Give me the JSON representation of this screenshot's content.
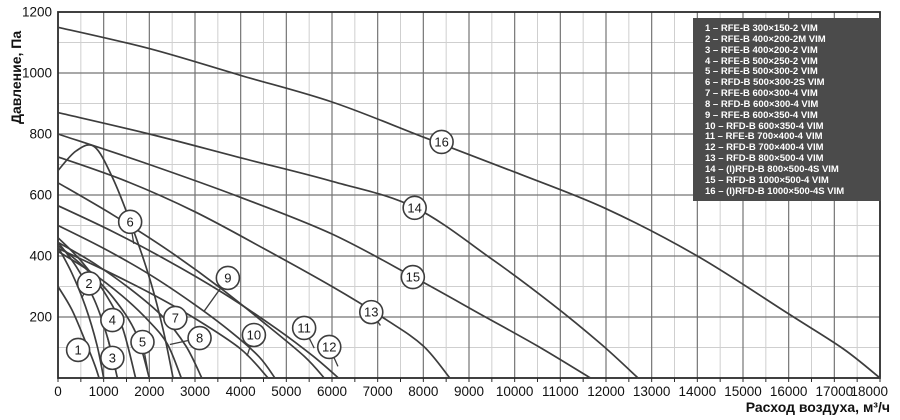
{
  "colors": {
    "curve": "#3d3d3d",
    "grid_major": "#757575",
    "grid_minor": "#cfcfcf",
    "axis_border": "#2b2b2b",
    "legend_bg": "#4b4b4b",
    "legend_text": "#ffffff",
    "tick_text": "#111111",
    "circle_fill": "#ffffff"
  },
  "legend": {
    "items": [
      "1 – RFE-B 300×150-2 VIM",
      "2 – RFE-B 400×200-2M VIM",
      "3 – RFE-B 400×200-2 VIM",
      "4 – RFE-B 500×250-2 VIM",
      "5 – RFE-B 500×300-2 VIM",
      "6 – RFD-B 500×300-2S VIM",
      "7 – RFE-B 600×300-4 VIM",
      "8 – RFD-B 600×300-4 VIM",
      "9 – RFE-B 600×350-4 VIM",
      "10 – RFD-B 600×350-4 VIM",
      "11 – RFE-B 700×400-4 VIM",
      "12 – RFD-B 700×400-4 VIM",
      "13 – RFD-B 800×500-4 VIM",
      "14 – (I)RFD-B 800×500-4S VIM",
      "15 – RFD-B 1000×500-4 VIM",
      "16 – (I)RFD-B 1000×500-4S VIM"
    ]
  },
  "chart_data": {
    "type": "line",
    "title": "",
    "xlabel": "Расход воздуха, м³/ч",
    "ylabel": "Давление, Па",
    "xlim": [
      0,
      18000
    ],
    "ylim": [
      0,
      1200
    ],
    "x_major": 1000,
    "x_minor": 500,
    "y_major": 200,
    "y_minor": 100,
    "x_ticks": [
      0,
      1000,
      2000,
      3000,
      4000,
      5000,
      6000,
      7000,
      8000,
      9000,
      10000,
      11000,
      12000,
      13000,
      14000,
      15000,
      16000,
      17000,
      18000
    ],
    "y_ticks": [
      200,
      400,
      600,
      800,
      1000,
      1200
    ],
    "grid": true,
    "legend_position": "top-right",
    "series": [
      {
        "id": "1",
        "model": "RFE-B 300×150-2 VIM",
        "label_at": [
          440,
          92
        ],
        "leader_to": [
          594,
          125
        ],
        "points": [
          [
            0,
            300
          ],
          [
            300,
            225
          ],
          [
            600,
            120
          ],
          [
            800,
            45
          ],
          [
            900,
            0
          ]
        ]
      },
      {
        "id": "2",
        "model": "RFE-B 400×200-2M VIM",
        "label_at": [
          680,
          310
        ],
        "leader_to": [
          520,
          262
        ],
        "points": [
          [
            0,
            430
          ],
          [
            300,
            345
          ],
          [
            600,
            235
          ],
          [
            850,
            110
          ],
          [
            1000,
            0
          ]
        ]
      },
      {
        "id": "3",
        "model": "RFE-B 400×200-2 VIM",
        "label_at": [
          1190,
          66
        ],
        "leader_to": [
          1080,
          135
        ],
        "points": [
          [
            0,
            445
          ],
          [
            400,
            365
          ],
          [
            800,
            255
          ],
          [
            1100,
            125
          ],
          [
            1300,
            0
          ]
        ]
      },
      {
        "id": "4",
        "model": "RFE-B 500×250-2 VIM",
        "label_at": [
          1190,
          190
        ],
        "leader_to": [
          1265,
          222
        ],
        "points": [
          [
            0,
            460
          ],
          [
            500,
            385
          ],
          [
            1000,
            285
          ],
          [
            1400,
            170
          ],
          [
            1700,
            0
          ]
        ]
      },
      {
        "id": "5",
        "model": "RFE-B 500×300-2 VIM",
        "label_at": [
          1850,
          118
        ],
        "leader_to": [
          1965,
          25
        ],
        "points": [
          [
            0,
            435
          ],
          [
            600,
            360
          ],
          [
            1200,
            265
          ],
          [
            1700,
            150
          ],
          [
            2000,
            0
          ]
        ]
      },
      {
        "id": "6",
        "model": "RFD-B 500×300-2S VIM",
        "label_at": [
          1580,
          512
        ],
        "leader_to": [
          1660,
          440
        ],
        "points": [
          [
            0,
            680
          ],
          [
            400,
            745
          ],
          [
            800,
            758
          ],
          [
            1200,
            655
          ],
          [
            1600,
            505
          ],
          [
            2000,
            330
          ],
          [
            2300,
            160
          ],
          [
            2520,
            0
          ]
        ]
      },
      {
        "id": "7",
        "model": "RFE-B 600×300-4 VIM",
        "label_at": [
          2570,
          197
        ],
        "leader_to": [
          2520,
          160
        ],
        "points": [
          [
            0,
            445
          ],
          [
            800,
            375
          ],
          [
            1600,
            290
          ],
          [
            2300,
            200
          ],
          [
            2800,
            105
          ],
          [
            3150,
            0
          ]
        ]
      },
      {
        "id": "8",
        "model": "RFD-B 600×300-4 VIM",
        "label_at": [
          3100,
          131
        ],
        "leader_to": [
          2450,
          110
        ],
        "points": [
          [
            0,
            415
          ],
          [
            700,
            350
          ],
          [
            1400,
            270
          ],
          [
            2000,
            185
          ],
          [
            2400,
            110
          ],
          [
            2700,
            0
          ]
        ]
      },
      {
        "id": "9",
        "model": "RFE-B 600×350-4 VIM",
        "label_at": [
          3720,
          328
        ],
        "leader_to": [
          3190,
          217
        ],
        "points": [
          [
            0,
            500
          ],
          [
            1000,
            425
          ],
          [
            2000,
            340
          ],
          [
            3000,
            240
          ],
          [
            3800,
            150
          ],
          [
            4400,
            70
          ],
          [
            4750,
            0
          ]
        ]
      },
      {
        "id": "10",
        "model": "RFD-B 600×350-4 VIM",
        "label_at": [
          4290,
          141
        ],
        "leader_to": [
          4140,
          72
        ],
        "points": [
          [
            0,
            425
          ],
          [
            1000,
            355
          ],
          [
            2000,
            280
          ],
          [
            3000,
            195
          ],
          [
            4000,
            95
          ],
          [
            4600,
            0
          ]
        ]
      },
      {
        "id": "11",
        "model": "RFE-B 700×400-4 VIM",
        "label_at": [
          5390,
          164
        ],
        "leader_to": [
          5610,
          98
        ],
        "points": [
          [
            0,
            640
          ],
          [
            1200,
            535
          ],
          [
            2400,
            420
          ],
          [
            3600,
            290
          ],
          [
            4600,
            170
          ],
          [
            5400,
            70
          ],
          [
            5830,
            0
          ]
        ]
      },
      {
        "id": "12",
        "model": "RFD-B 700×400-4 VIM",
        "label_at": [
          5940,
          102
        ],
        "leader_to": [
          6130,
          38
        ],
        "points": [
          [
            0,
            565
          ],
          [
            1200,
            480
          ],
          [
            2400,
            385
          ],
          [
            3600,
            280
          ],
          [
            4800,
            160
          ],
          [
            5600,
            70
          ],
          [
            6140,
            0
          ]
        ]
      },
      {
        "id": "13",
        "model": "RFD-B 800×500-4 VIM",
        "label_at": [
          6860,
          216
        ],
        "leader_to": [
          7060,
          172
        ],
        "points": [
          [
            0,
            725
          ],
          [
            1500,
            645
          ],
          [
            3000,
            545
          ],
          [
            4500,
            425
          ],
          [
            6000,
            300
          ],
          [
            7200,
            190
          ],
          [
            8000,
            105
          ],
          [
            8580,
            0
          ]
        ]
      },
      {
        "id": "14",
        "model": "(I)RFD-B 800×500-4S VIM",
        "label_at": [
          7810,
          558
        ],
        "leader_to": null,
        "points": [
          [
            0,
            870
          ],
          [
            2000,
            800
          ],
          [
            4000,
            722
          ],
          [
            6000,
            645
          ],
          [
            7800,
            560
          ],
          [
            9500,
            390
          ],
          [
            10800,
            245
          ],
          [
            11900,
            110
          ],
          [
            12700,
            0
          ]
        ]
      },
      {
        "id": "15",
        "model": "RFD-B 1000×500-4 VIM",
        "label_at": [
          7770,
          331
        ],
        "leader_to": null,
        "points": [
          [
            0,
            800
          ],
          [
            2000,
            700
          ],
          [
            4000,
            592
          ],
          [
            6000,
            472
          ],
          [
            7800,
            330
          ],
          [
            9300,
            205
          ],
          [
            10500,
            105
          ],
          [
            11660,
            0
          ]
        ]
      },
      {
        "id": "16",
        "model": "(I)RFD-B 1000×500-4S VIM",
        "label_at": [
          8400,
          774
        ],
        "leader_to": null,
        "points": [
          [
            0,
            1150
          ],
          [
            2000,
            1080
          ],
          [
            4000,
            992
          ],
          [
            6000,
            905
          ],
          [
            8000,
            790
          ],
          [
            10000,
            675
          ],
          [
            12000,
            555
          ],
          [
            14000,
            400
          ],
          [
            16000,
            210
          ],
          [
            17200,
            95
          ],
          [
            18000,
            0
          ]
        ]
      }
    ]
  }
}
